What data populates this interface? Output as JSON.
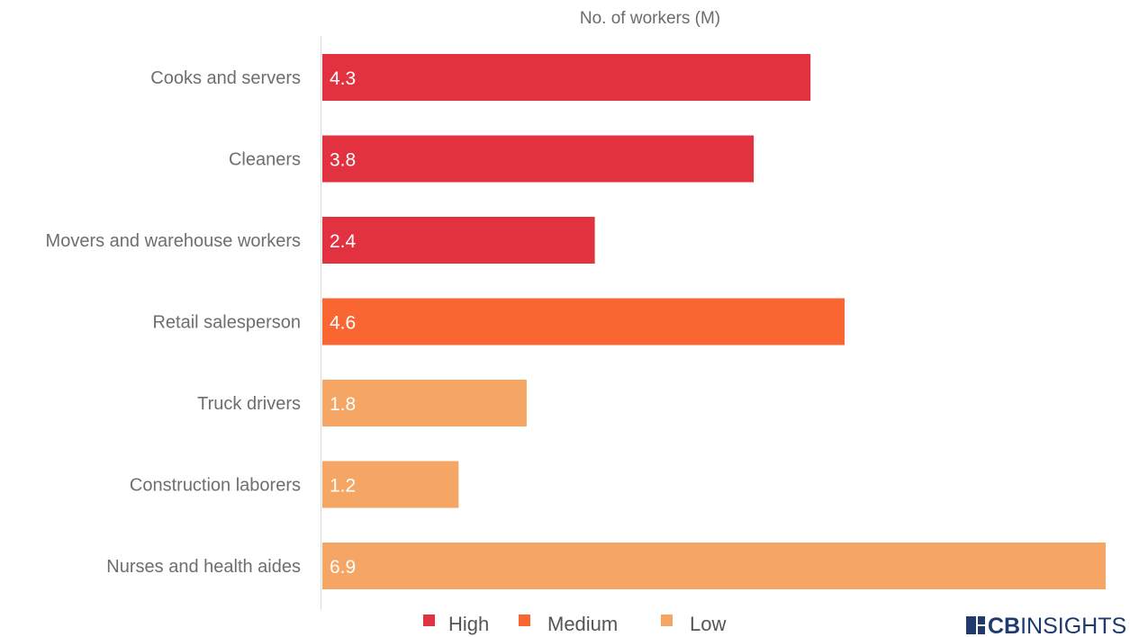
{
  "chart_data": {
    "type": "bar",
    "orientation": "horizontal",
    "title": "",
    "xlabel": "No. of workers (M)",
    "ylabel": "",
    "xlim": [
      0,
      6.9
    ],
    "grid": false,
    "categories": [
      "Cooks and servers",
      "Cleaners",
      "Movers and warehouse workers",
      "Retail salesperson",
      "Truck drivers",
      "Construction laborers",
      "Nurses and health aides"
    ],
    "values": [
      4.3,
      3.8,
      2.4,
      4.6,
      1.8,
      1.2,
      6.9
    ],
    "value_labels": [
      "4.3",
      "3.8",
      "2.4",
      "4.6",
      "1.8",
      "1.2",
      "6.9"
    ],
    "risk_group": [
      "High",
      "High",
      "High",
      "Medium",
      "Low",
      "Low",
      "Low"
    ],
    "legend": {
      "placement": "bottom",
      "entries": [
        {
          "name": "High",
          "color": "#e2313f"
        },
        {
          "name": "Medium",
          "color": "#fa6631"
        },
        {
          "name": "Low",
          "color": "#f5a664"
        }
      ]
    }
  },
  "logo": {
    "text_bold": "CB",
    "text_light": "INSIGHTS",
    "color": "#1f3b6e"
  }
}
